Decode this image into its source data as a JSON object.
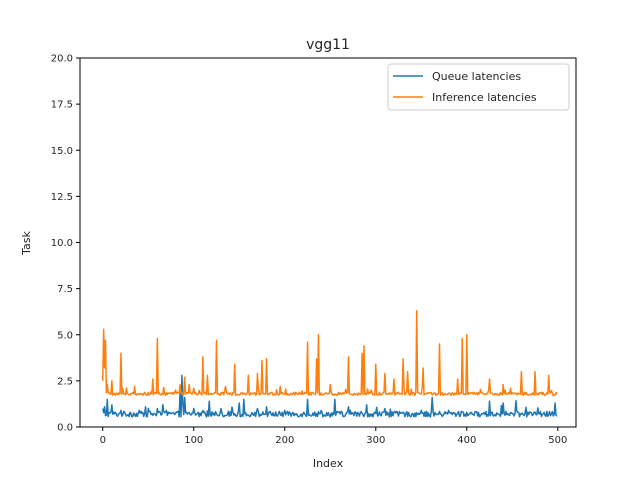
{
  "chart_data": {
    "type": "line",
    "title": "vgg11",
    "xlabel": "Index",
    "ylabel": "Task",
    "xlim": [
      -25,
      520
    ],
    "ylim": [
      0,
      20
    ],
    "xticks": [
      0,
      100,
      200,
      300,
      400,
      500
    ],
    "xtick_labels": [
      "0",
      "100",
      "200",
      "300",
      "400",
      "500"
    ],
    "yticks": [
      0,
      2.5,
      5,
      7.5,
      10,
      12.5,
      15,
      17.5,
      20
    ],
    "ytick_labels": [
      "0.0",
      "2.5",
      "5.0",
      "7.5",
      "10.0",
      "12.5",
      "15.0",
      "17.5",
      "20.0"
    ],
    "grid": false,
    "legend_position": "top-right",
    "n_points": 500,
    "series": [
      {
        "name": "Queue latencies",
        "color": "#1f77b4",
        "baseline": 0.7,
        "noise": 0.15,
        "spikes": [
          [
            0,
            1.0
          ],
          [
            2,
            1.1
          ],
          [
            5,
            1.5
          ],
          [
            10,
            1.2
          ],
          [
            20,
            0.9
          ],
          [
            30,
            0.8
          ],
          [
            40,
            0.9
          ],
          [
            50,
            1.0
          ],
          [
            60,
            1.0
          ],
          [
            70,
            0.9
          ],
          [
            85,
            2.0
          ],
          [
            87,
            2.8
          ],
          [
            90,
            1.6
          ],
          [
            100,
            1.0
          ],
          [
            110,
            0.9
          ],
          [
            130,
            1.0
          ],
          [
            150,
            1.3
          ],
          [
            155,
            1.5
          ],
          [
            170,
            1.0
          ],
          [
            180,
            1.1
          ],
          [
            200,
            0.9
          ],
          [
            225,
            1.5
          ],
          [
            240,
            0.9
          ],
          [
            255,
            1.5
          ],
          [
            270,
            1.1
          ],
          [
            290,
            1.2
          ],
          [
            310,
            1.0
          ],
          [
            330,
            0.8
          ],
          [
            350,
            0.9
          ],
          [
            362,
            1.6
          ],
          [
            380,
            0.9
          ],
          [
            400,
            0.8
          ],
          [
            425,
            1.4
          ],
          [
            440,
            1.3
          ],
          [
            460,
            0.7
          ],
          [
            480,
            0.7
          ],
          [
            495,
            0.6
          ],
          [
            497,
            1.3
          ]
        ]
      },
      {
        "name": "Inference latencies",
        "color": "#ff7f0e",
        "baseline": 1.8,
        "noise": 0.08,
        "spikes": [
          [
            0,
            2.5
          ],
          [
            1,
            5.3
          ],
          [
            2,
            3.2
          ],
          [
            3,
            4.7
          ],
          [
            5,
            2.3
          ],
          [
            10,
            2.5
          ],
          [
            20,
            4.0
          ],
          [
            35,
            2.2
          ],
          [
            55,
            2.6
          ],
          [
            60,
            4.8
          ],
          [
            80,
            2.0
          ],
          [
            85,
            2.3
          ],
          [
            90,
            2.7
          ],
          [
            95,
            2.3
          ],
          [
            100,
            2.1
          ],
          [
            110,
            3.8
          ],
          [
            115,
            2.8
          ],
          [
            125,
            4.7
          ],
          [
            135,
            2.2
          ],
          [
            145,
            3.4
          ],
          [
            160,
            2.8
          ],
          [
            170,
            2.9
          ],
          [
            175,
            3.6
          ],
          [
            180,
            3.7
          ],
          [
            195,
            2.2
          ],
          [
            225,
            4.6
          ],
          [
            235,
            3.7
          ],
          [
            237,
            5.0
          ],
          [
            250,
            2.3
          ],
          [
            270,
            3.8
          ],
          [
            285,
            4.0
          ],
          [
            287,
            4.4
          ],
          [
            300,
            3.4
          ],
          [
            310,
            2.9
          ],
          [
            320,
            2.6
          ],
          [
            330,
            3.7
          ],
          [
            335,
            3.0
          ],
          [
            345,
            6.3
          ],
          [
            352,
            3.2
          ],
          [
            370,
            4.5
          ],
          [
            390,
            2.6
          ],
          [
            395,
            4.8
          ],
          [
            400,
            5.0
          ],
          [
            425,
            2.6
          ],
          [
            440,
            2.3
          ],
          [
            460,
            3.0
          ],
          [
            475,
            3.0
          ],
          [
            490,
            2.8
          ],
          [
            495,
            1.7
          ]
        ]
      }
    ]
  }
}
